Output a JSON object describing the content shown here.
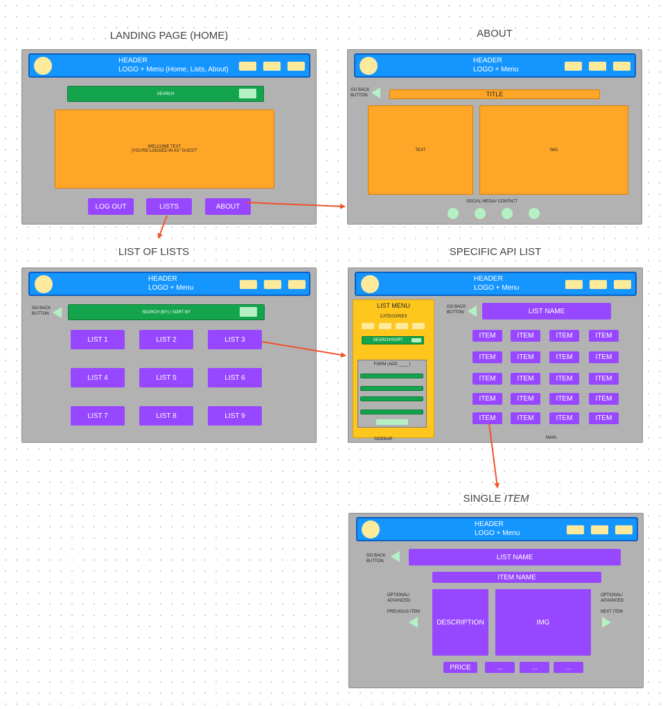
{
  "landing": {
    "title": "LANDING PAGE (HOME)",
    "header_line1": "HEADER",
    "header_line2": "LOGO + Menu (Home, Lists, About)",
    "search": "SEARCH",
    "welcome_line1": "WELCOME TEXT",
    "welcome_line2": "(YOU'RE LOGGED IN AS \"GUEST\"",
    "buttons": [
      "LOG OUT",
      "LISTS",
      "ABOUT"
    ]
  },
  "about": {
    "title": "ABOUT",
    "header_line1": "HEADER",
    "header_line2": "LOGO + Menu",
    "go_back_line1": "GO BACK",
    "go_back_line2": "BUTTON",
    "page_title": "TITLE",
    "text": "TEXT",
    "img": "IMG",
    "social": "SOCIAL MEDIA/ CONTACT"
  },
  "list_of_lists": {
    "title": "LIST OF LISTS",
    "header_line1": "HEADER",
    "header_line2": "LOGO + Menu",
    "go_back_line1": "GO BACK",
    "go_back_line2": "BUTTON",
    "search": "SEARCH (BY) / SORT BY",
    "lists": [
      "LIST 1",
      "LIST 2",
      "LIST 3",
      "LIST 4",
      "LIST 5",
      "LIST 6",
      "LIST 7",
      "LIST 8",
      "LIST 9"
    ]
  },
  "specific": {
    "title": "SPECIFIC API LIST",
    "header_line1": "HEADER",
    "header_line2": "LOGO + Menu",
    "list_menu": "LIST MENU",
    "categories": "CATEGORIES",
    "search_sort": "SEARCH/SORT",
    "form": "FORM (ADD ____ )",
    "sidebar": "SIDEBAR",
    "go_back_line1": "GO BACK",
    "go_back_line2": "BUTTON",
    "list_name": "LIST NAME",
    "item": "ITEM",
    "main": "MAIN"
  },
  "single": {
    "title": "SINGLE ",
    "title_italic": "ITEM",
    "header_line1": "HEADER",
    "header_line2": "LOGO + Menu",
    "go_back_line1": "GO BACK",
    "go_back_line2": "BUTTON",
    "list_name": "LIST NAME",
    "item_name": "ITEM NAME",
    "optional_line1": "OPTIONAL/",
    "optional_line2": "ADVANCED:",
    "previous_item": "PREVIOUS ITEM",
    "next_item": "NEXT ITEM",
    "description": "DESCRIPTION",
    "img": "IMG",
    "price": "PRICE",
    "ellipsis": "..."
  },
  "colors": {
    "frame": "#b2b2b2",
    "header": "#1596ff",
    "search": "#14a44d",
    "content": "#ffa628",
    "button": "#9747ff",
    "sidebar": "#ffc71e",
    "arrow": "#f0522a"
  }
}
